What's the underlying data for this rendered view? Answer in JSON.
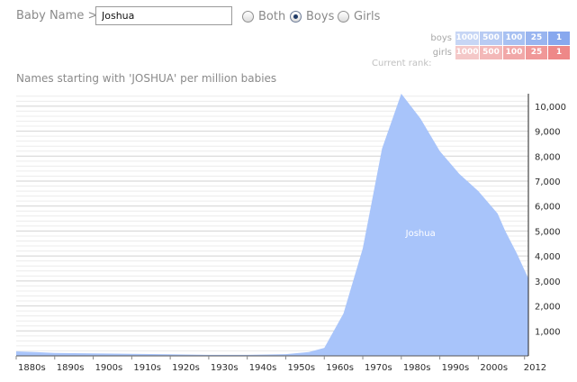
{
  "controls": {
    "label": "Baby Name >",
    "name_value": "Joshua",
    "options": [
      {
        "label": "Both",
        "selected": false
      },
      {
        "label": "Boys",
        "selected": true
      },
      {
        "label": "Girls",
        "selected": false
      }
    ]
  },
  "rank_legend": {
    "current_rank_label": "Current rank:",
    "rows": [
      {
        "name": "boys",
        "cells": [
          "1000",
          "500",
          "100",
          "25",
          "1"
        ],
        "colors": [
          "#c7d6f5",
          "#b8cbf3",
          "#a8c1f2",
          "#99b5f0",
          "#88a8ee"
        ]
      },
      {
        "name": "girls",
        "cells": [
          "1000",
          "500",
          "100",
          "25",
          "1"
        ],
        "colors": [
          "#f4c8c8",
          "#f3b8b8",
          "#f1a8a8",
          "#f09898",
          "#ee8888"
        ]
      }
    ]
  },
  "chart_data": {
    "type": "area",
    "title": "Names starting with 'JOSHUA' per million babies",
    "xlabel": "",
    "ylabel": "",
    "x_tick_labels": [
      "1880s",
      "1890s",
      "1900s",
      "1910s",
      "1920s",
      "1930s",
      "1940s",
      "1950s",
      "1960s",
      "1970s",
      "1980s",
      "1990s",
      "2000s",
      "2012"
    ],
    "y_ticks": [
      1000,
      2000,
      3000,
      4000,
      5000,
      6000,
      7000,
      8000,
      9000,
      10000
    ],
    "ylim": [
      0,
      10500
    ],
    "xlim": [
      1880,
      2013
    ],
    "grid": true,
    "series": [
      {
        "name": "Joshua",
        "color": "#a8c4fa",
        "x": [
          1880,
          1885,
          1890,
          1900,
          1910,
          1920,
          1930,
          1940,
          1950,
          1956,
          1960,
          1965,
          1970,
          1975,
          1980,
          1985,
          1990,
          1995,
          2000,
          2005,
          2007,
          2010,
          2013
        ],
        "y": [
          180,
          150,
          120,
          100,
          80,
          60,
          40,
          40,
          70,
          150,
          320,
          1700,
          4300,
          8300,
          10500,
          9500,
          8200,
          7300,
          6600,
          5700,
          5000,
          4100,
          3100
        ]
      }
    ]
  }
}
